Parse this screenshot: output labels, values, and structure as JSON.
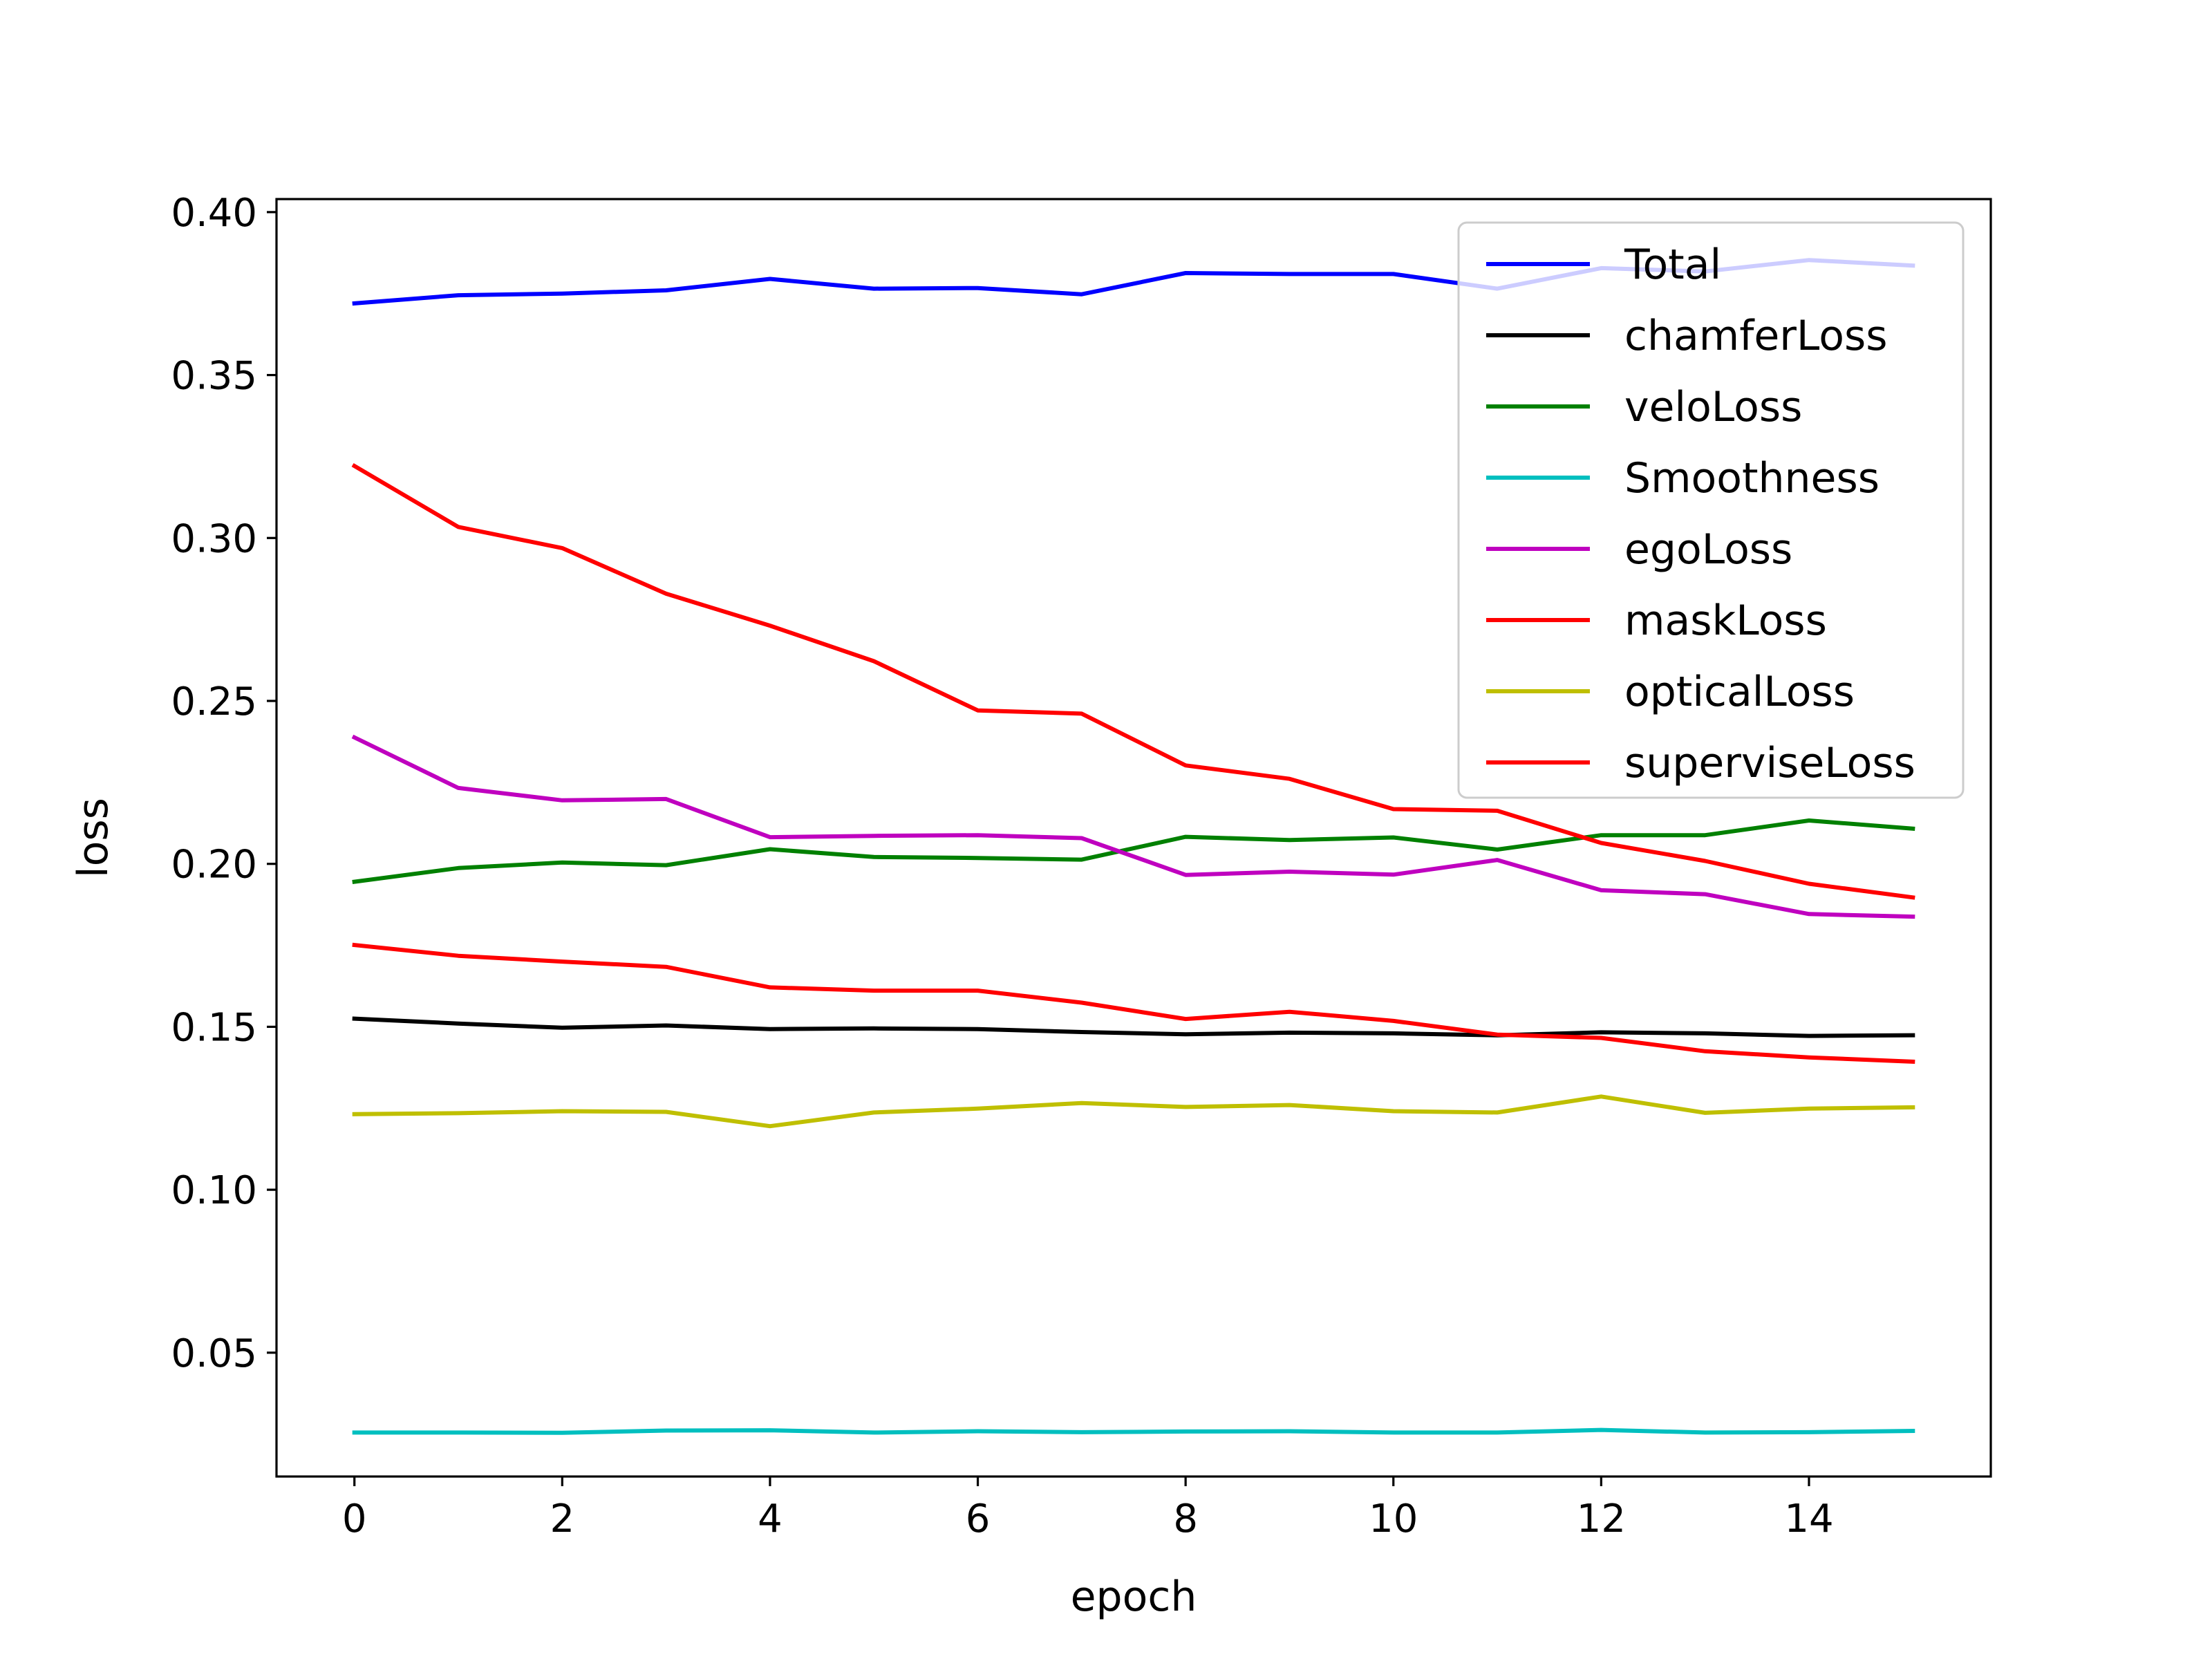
{
  "chart_data": {
    "type": "line",
    "title": "",
    "xlabel": "epoch",
    "ylabel": "loss",
    "x": [
      0,
      1,
      2,
      3,
      4,
      5,
      6,
      7,
      8,
      9,
      10,
      11,
      12,
      13,
      14,
      15
    ],
    "xlim": [
      -0.75,
      15.75
    ],
    "ylim": [
      0.012,
      0.404
    ],
    "xticks": [
      0,
      2,
      4,
      6,
      8,
      10,
      12,
      14
    ],
    "xtick_labels": [
      "0",
      "2",
      "4",
      "6",
      "8",
      "10",
      "12",
      "14"
    ],
    "yticks": [
      0.05,
      0.1,
      0.15,
      0.2,
      0.25,
      0.3,
      0.35,
      0.4
    ],
    "ytick_labels": [
      "0.05",
      "0.10",
      "0.15",
      "0.20",
      "0.25",
      "0.30",
      "0.35",
      "0.40"
    ],
    "grid": false,
    "legend_position": "top-right",
    "series": [
      {
        "name": "Total",
        "color": "#0000ff",
        "values": [
          0.372,
          0.3745,
          0.375,
          0.376,
          0.3795,
          0.3765,
          0.3767,
          0.3748,
          0.3813,
          0.381,
          0.381,
          0.3765,
          0.3828,
          0.3818,
          0.3853,
          0.3836
        ]
      },
      {
        "name": "chamferLoss",
        "color": "#000000",
        "values": [
          0.1525,
          0.151,
          0.1497,
          0.1504,
          0.1493,
          0.1495,
          0.1493,
          0.1484,
          0.1477,
          0.1482,
          0.148,
          0.1474,
          0.1483,
          0.148,
          0.1472,
          0.1474
        ]
      },
      {
        "name": "veloLoss",
        "color": "#008000",
        "values": [
          0.1945,
          0.1987,
          0.2004,
          0.1996,
          0.2045,
          0.2021,
          0.2018,
          0.2013,
          0.2083,
          0.2073,
          0.2081,
          0.2044,
          0.2088,
          0.2088,
          0.2133,
          0.2108
        ]
      },
      {
        "name": "Smoothness",
        "color": "#00bfbf",
        "values": [
          0.0255,
          0.0255,
          0.0254,
          0.0261,
          0.0262,
          0.0255,
          0.0259,
          0.0256,
          0.0258,
          0.0259,
          0.0255,
          0.0255,
          0.0263,
          0.0255,
          0.0256,
          0.026
        ]
      },
      {
        "name": "egoLoss",
        "color": "#bf00bf",
        "values": [
          0.2388,
          0.2233,
          0.2195,
          0.2199,
          0.2082,
          0.2086,
          0.2088,
          0.2079,
          0.1966,
          0.1976,
          0.1967,
          0.2012,
          0.1919,
          0.1907,
          0.1846,
          0.1838
        ]
      },
      {
        "name": "maskLoss",
        "color": "#ff0000",
        "values": [
          0.3221,
          0.3034,
          0.2969,
          0.2829,
          0.2731,
          0.2622,
          0.2471,
          0.2461,
          0.2302,
          0.2261,
          0.2168,
          0.2163,
          0.2064,
          0.2009,
          0.1939,
          0.1897
        ]
      },
      {
        "name": "opticalLoss",
        "color": "#bfbf00",
        "values": [
          0.1232,
          0.1235,
          0.1241,
          0.1239,
          0.1195,
          0.1237,
          0.1249,
          0.1266,
          0.1254,
          0.126,
          0.1241,
          0.1237,
          0.1286,
          0.1236,
          0.1249,
          0.1253
        ]
      },
      {
        "name": "superviseLoss",
        "color": "#ff0000",
        "values": [
          0.1751,
          0.1718,
          0.17,
          0.1684,
          0.1621,
          0.1611,
          0.1611,
          0.1574,
          0.1524,
          0.1546,
          0.1518,
          0.1476,
          0.1466,
          0.1425,
          0.1406,
          0.1393
        ]
      }
    ]
  }
}
